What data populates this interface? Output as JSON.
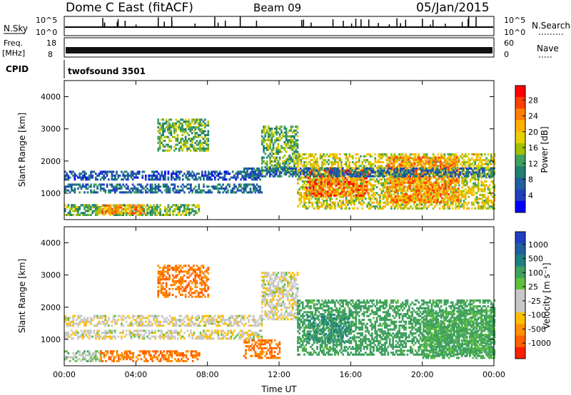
{
  "header": {
    "station": "Dome C East (fitACF)",
    "beam": "Beam 09",
    "date": "05/Jan/2015"
  },
  "panels": {
    "nsky": {
      "label": "N.Sky",
      "ticks": [
        "10^5",
        "10^0"
      ],
      "right_ticks": [
        "10^5",
        "10^0"
      ],
      "right_label": "N.Search"
    },
    "freq": {
      "label_top": "Freq.",
      "label_unit": "[MHz]",
      "ticks": [
        "18",
        "8"
      ],
      "right_ticks": [
        "60",
        "0"
      ],
      "right_label": "Nave"
    },
    "cpid": {
      "label": "CPID",
      "value": "twofsound 3501"
    }
  },
  "colorbars": {
    "power": {
      "label": "Power [dB]",
      "ticks": [
        "28",
        "24",
        "20",
        "16",
        "12",
        "8",
        "4"
      ],
      "colors": [
        "#ff0000",
        "#ff4000",
        "#ff8000",
        "#ffb000",
        "#e8d000",
        "#a0c000",
        "#40a060",
        "#208070",
        "#2060a0",
        "#2040c0",
        "#0000ff"
      ]
    },
    "velocity": {
      "label": "Velocity [m s⁻¹]",
      "ticks": [
        "1000",
        "500",
        "100",
        "25",
        "-25",
        "-100",
        "-500",
        "-1000"
      ],
      "colors": [
        "#2040c0",
        "#2060a0",
        "#208080",
        "#40a060",
        "#60c040",
        "#c8c8c8",
        "#c8c8c8",
        "#ffc000",
        "#ff9000",
        "#ff6000",
        "#ff2000"
      ]
    }
  },
  "chart_data": [
    {
      "type": "heatmap",
      "name": "power",
      "xlabel": "",
      "ylabel": "Slant Range [km]",
      "xlim": [
        0,
        24
      ],
      "ylim": [
        180,
        4500
      ],
      "yticks": [
        1000,
        2000,
        3000,
        4000
      ],
      "xticks": [
        0,
        4,
        8,
        12,
        16,
        20,
        24
      ],
      "xtick_labels": [
        "00:00",
        "04:00",
        "08:00",
        "12:00",
        "16:00",
        "20:00",
        "00:00"
      ],
      "regions": [
        {
          "t": [
            0,
            11
          ],
          "r": [
            1400,
            1700
          ],
          "v": 6
        },
        {
          "t": [
            0,
            11
          ],
          "r": [
            1000,
            1250
          ],
          "v": 8
        },
        {
          "t": [
            0,
            7.5
          ],
          "r": [
            300,
            650
          ],
          "v": 14
        },
        {
          "t": [
            2,
            4.5
          ],
          "r": [
            350,
            600
          ],
          "v": 24
        },
        {
          "t": [
            5.2,
            8
          ],
          "r": [
            2300,
            3300
          ],
          "v": 14
        },
        {
          "t": [
            11,
            13
          ],
          "r": [
            1600,
            3100
          ],
          "v": 14
        },
        {
          "t": [
            13,
            24
          ],
          "r": [
            500,
            2200
          ],
          "v": 18
        },
        {
          "t": [
            13.5,
            17
          ],
          "r": [
            900,
            1800
          ],
          "v": 26
        },
        {
          "t": [
            18,
            22
          ],
          "r": [
            700,
            2100
          ],
          "v": 24
        },
        {
          "t": [
            10,
            24
          ],
          "r": [
            1500,
            1800
          ],
          "v": 8
        }
      ]
    },
    {
      "type": "heatmap",
      "name": "velocity",
      "xlabel": "Time UT",
      "ylabel": "Slant Range [km]",
      "xlim": [
        0,
        24
      ],
      "ylim": [
        180,
        4500
      ],
      "yticks": [
        1000,
        2000,
        3000,
        4000
      ],
      "xticks": [
        0,
        4,
        8,
        12,
        16,
        20,
        24
      ],
      "xtick_labels": [
        "00:00",
        "04:00",
        "08:00",
        "12:00",
        "16:00",
        "20:00",
        "00:00"
      ],
      "regions": [
        {
          "t": [
            0,
            11
          ],
          "r": [
            1400,
            1750
          ],
          "v": 0
        },
        {
          "t": [
            0,
            11
          ],
          "r": [
            1000,
            1250
          ],
          "v": 0
        },
        {
          "t": [
            0,
            2
          ],
          "r": [
            300,
            650
          ],
          "v": 50
        },
        {
          "t": [
            2,
            7.5
          ],
          "r": [
            300,
            650
          ],
          "v": -300
        },
        {
          "t": [
            5.2,
            8
          ],
          "r": [
            2300,
            3300
          ],
          "v": -300
        },
        {
          "t": [
            11,
            13
          ],
          "r": [
            1600,
            3100
          ],
          "v": 0
        },
        {
          "t": [
            13,
            24
          ],
          "r": [
            500,
            2200
          ],
          "v": 150
        },
        {
          "t": [
            13.5,
            16
          ],
          "r": [
            900,
            1800
          ],
          "v": 300
        },
        {
          "t": [
            10,
            12
          ],
          "r": [
            400,
            1000
          ],
          "v": -300
        },
        {
          "t": [
            20,
            24
          ],
          "r": [
            400,
            1900
          ],
          "v": 120
        }
      ]
    }
  ]
}
